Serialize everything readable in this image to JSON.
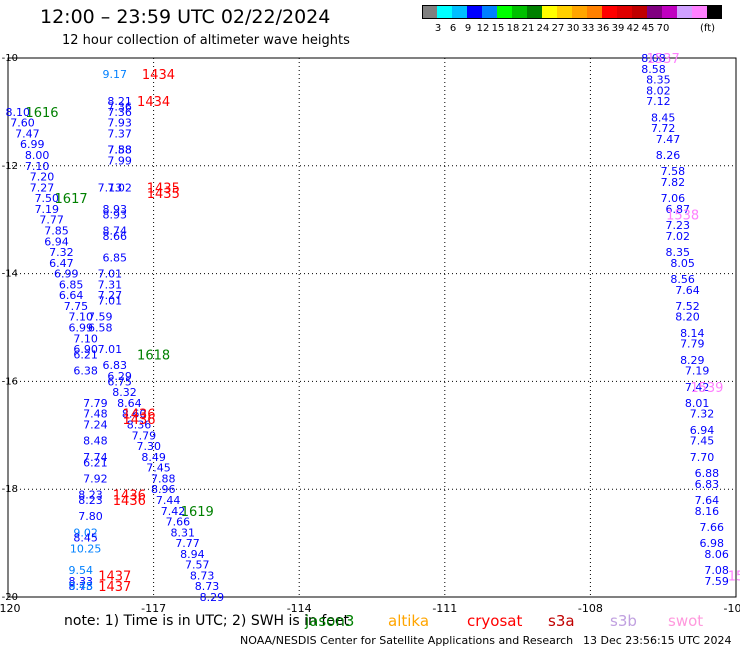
{
  "header": {
    "title": "12:00 – 23:59 UTC 02/22/2024",
    "subtitle": "12 hour collection of altimeter wave heights"
  },
  "colorbar": {
    "colors": [
      "#808080",
      "#00ffff",
      "#00bfff",
      "#0000ff",
      "#0080ff",
      "#00ff00",
      "#00c000",
      "#008000",
      "#ffff00",
      "#ffd000",
      "#ffa500",
      "#ff8000",
      "#ff0000",
      "#e00000",
      "#c00000",
      "#800080",
      "#c000c0",
      "#d0a0ff",
      "#ff80ff",
      "#000000"
    ],
    "labels": [
      "3",
      "6",
      "9",
      "12",
      "15",
      "18",
      "21",
      "24",
      "27",
      "30",
      "33",
      "36",
      "39",
      "42",
      "45",
      "70"
    ],
    "unit": "(ft)"
  },
  "footer": {
    "note": "note:  1) Time is in UTC;  2) SWH is in feet",
    "legend": [
      {
        "name": "jason3",
        "color": "#008000"
      },
      {
        "name": "altika",
        "color": "#ffa500"
      },
      {
        "name": "cryosat",
        "color": "#ff0000"
      },
      {
        "name": "s3a",
        "color": "#c00000"
      },
      {
        "name": "s3b",
        "color": "#c0a0e0"
      },
      {
        "name": "swot",
        "color": "#ff99dd"
      }
    ],
    "credit": "NOAA/NESDIS Center for Satellite Applications and Research",
    "timestamp": "13 Dec 23:56:15 UTC 2024"
  },
  "chart_data": {
    "type": "scatter",
    "title": "12:00 – 23:59 UTC 02/22/2024",
    "subtitle": "12 hour collection of altimeter wave heights",
    "x_ticks": [
      "-120",
      "-117",
      "-114",
      "-111",
      "-108",
      "-105"
    ],
    "y_ticks": [
      "-10",
      "-12",
      "-14",
      "-16",
      "-18",
      "-20"
    ],
    "xlim": [
      -120,
      -105
    ],
    "ylim": [
      -20,
      -10
    ],
    "grid": "dotted",
    "series": [
      {
        "name": "jason3",
        "color": "#008000",
        "pass_labels": [
          {
            "text": "1616",
            "x": -119.3,
            "y": -11.0
          },
          {
            "text": "1617",
            "x": -118.7,
            "y": -12.6
          },
          {
            "text": "1618",
            "x": -117.0,
            "y": -15.5
          },
          {
            "text": "1619",
            "x": -116.1,
            "y": -18.4
          }
        ]
      },
      {
        "name": "cryosat",
        "color": "#ff0000",
        "pass_labels": [
          {
            "text": "1434",
            "x": -116.9,
            "y": -10.3
          },
          {
            "text": "1434",
            "x": -117.0,
            "y": -10.8
          },
          {
            "text": "1435",
            "x": -116.8,
            "y": -12.4
          },
          {
            "text": "1435",
            "x": -116.8,
            "y": -12.5
          },
          {
            "text": "1436",
            "x": -117.3,
            "y": -16.6
          },
          {
            "text": "1436",
            "x": -117.3,
            "y": -16.7
          },
          {
            "text": "1436",
            "x": -117.5,
            "y": -18.1
          },
          {
            "text": "1436",
            "x": -117.5,
            "y": -18.2
          },
          {
            "text": "1437",
            "x": -117.8,
            "y": -19.6
          },
          {
            "text": "1437",
            "x": -117.8,
            "y": -19.8
          }
        ]
      },
      {
        "name": "swot",
        "color": "#ff80ff",
        "pass_labels": [
          {
            "text": "1537",
            "x": -106.5,
            "y": -10.0
          },
          {
            "text": "1538",
            "x": -106.1,
            "y": -12.9
          },
          {
            "text": "1539",
            "x": -105.6,
            "y": -16.1
          },
          {
            "text": "15",
            "x": -105.0,
            "y": -19.6
          }
        ]
      }
    ],
    "points": [
      {
        "x": -117.8,
        "y": -10.3,
        "v": 9.17
      },
      {
        "x": -117.7,
        "y": -10.8,
        "v": 8.21
      },
      {
        "x": -117.7,
        "y": -10.9,
        "v": 7.36
      },
      {
        "x": -117.7,
        "y": -11.0,
        "v": 7.36
      },
      {
        "x": -117.7,
        "y": -11.2,
        "v": 7.93
      },
      {
        "x": -117.7,
        "y": -11.4,
        "v": 7.37
      },
      {
        "x": -117.7,
        "y": -11.7,
        "v": 7.58
      },
      {
        "x": -117.7,
        "y": -11.7,
        "v": 7.88
      },
      {
        "x": -117.7,
        "y": -11.9,
        "v": 7.99
      },
      {
        "x": -119.8,
        "y": -11.0,
        "v": 8.1
      },
      {
        "x": -119.7,
        "y": -11.2,
        "v": 7.6
      },
      {
        "x": -119.6,
        "y": -11.4,
        "v": 7.47
      },
      {
        "x": -119.5,
        "y": -11.6,
        "v": 6.99
      },
      {
        "x": -119.4,
        "y": -11.8,
        "v": 8.0
      },
      {
        "x": -119.4,
        "y": -12.0,
        "v": 7.1
      },
      {
        "x": -119.3,
        "y": -12.2,
        "v": 7.2
      },
      {
        "x": -119.3,
        "y": -12.4,
        "v": 7.27
      },
      {
        "x": -119.2,
        "y": -12.6,
        "v": 7.5
      },
      {
        "x": -119.2,
        "y": -12.8,
        "v": 7.19
      },
      {
        "x": -119.1,
        "y": -13.0,
        "v": 7.77
      },
      {
        "x": -119.0,
        "y": -13.2,
        "v": 7.85
      },
      {
        "x": -119.0,
        "y": -13.4,
        "v": 6.94
      },
      {
        "x": -118.9,
        "y": -13.6,
        "v": 7.32
      },
      {
        "x": -118.9,
        "y": -13.8,
        "v": 6.47
      },
      {
        "x": -118.8,
        "y": -14.0,
        "v": 6.99
      },
      {
        "x": -118.7,
        "y": -14.2,
        "v": 6.85
      },
      {
        "x": -118.7,
        "y": -14.4,
        "v": 6.64
      },
      {
        "x": -118.6,
        "y": -14.6,
        "v": 7.75
      },
      {
        "x": -118.5,
        "y": -14.8,
        "v": 7.1
      },
      {
        "x": -118.5,
        "y": -15.0,
        "v": 6.99
      },
      {
        "x": -118.4,
        "y": -15.2,
        "v": 7.1
      },
      {
        "x": -118.4,
        "y": -15.4,
        "v": 6.9
      },
      {
        "x": -118.4,
        "y": -15.5,
        "v": 6.21
      },
      {
        "x": -118.4,
        "y": -15.8,
        "v": 6.38
      },
      {
        "x": -117.9,
        "y": -12.4,
        "v": 7.13
      },
      {
        "x": -117.7,
        "y": -12.4,
        "v": 7.02
      },
      {
        "x": -117.8,
        "y": -12.8,
        "v": 8.93
      },
      {
        "x": -117.8,
        "y": -12.9,
        "v": 8.93
      },
      {
        "x": -117.8,
        "y": -13.2,
        "v": 8.74
      },
      {
        "x": -117.8,
        "y": -13.3,
        "v": 8.66
      },
      {
        "x": -117.8,
        "y": -13.7,
        "v": 6.85
      },
      {
        "x": -117.9,
        "y": -14.0,
        "v": 7.01
      },
      {
        "x": -117.9,
        "y": -14.2,
        "v": 7.31
      },
      {
        "x": -117.9,
        "y": -14.4,
        "v": 7.27
      },
      {
        "x": -117.9,
        "y": -14.5,
        "v": 7.01
      },
      {
        "x": -118.1,
        "y": -14.8,
        "v": 7.59
      },
      {
        "x": -118.1,
        "y": -15.0,
        "v": 6.58
      },
      {
        "x": -117.9,
        "y": -15.4,
        "v": 7.01
      },
      {
        "x": -117.8,
        "y": -15.7,
        "v": 6.83
      },
      {
        "x": -117.7,
        "y": -15.9,
        "v": 6.29
      },
      {
        "x": -117.7,
        "y": -16.0,
        "v": 6.75
      },
      {
        "x": -117.6,
        "y": -16.2,
        "v": 8.32
      },
      {
        "x": -117.5,
        "y": -16.4,
        "v": 8.64
      },
      {
        "x": -117.4,
        "y": -16.6,
        "v": 8.6
      },
      {
        "x": -117.3,
        "y": -16.8,
        "v": 8.36
      },
      {
        "x": -117.2,
        "y": -17.0,
        "v": 7.79
      },
      {
        "x": -117.1,
        "y": -17.2,
        "v": 7.3
      },
      {
        "x": -117.0,
        "y": -17.4,
        "v": 8.49
      },
      {
        "x": -116.9,
        "y": -17.6,
        "v": 7.45
      },
      {
        "x": -116.8,
        "y": -17.8,
        "v": 7.88
      },
      {
        "x": -116.8,
        "y": -18.0,
        "v": 8.96
      },
      {
        "x": -116.7,
        "y": -18.2,
        "v": 7.44
      },
      {
        "x": -116.6,
        "y": -18.4,
        "v": 7.42
      },
      {
        "x": -116.5,
        "y": -18.6,
        "v": 7.66
      },
      {
        "x": -116.4,
        "y": -18.8,
        "v": 8.31
      },
      {
        "x": -116.3,
        "y": -19.0,
        "v": 7.77
      },
      {
        "x": -116.2,
        "y": -19.2,
        "v": 8.94
      },
      {
        "x": -116.1,
        "y": -19.4,
        "v": 7.57
      },
      {
        "x": -116.0,
        "y": -19.6,
        "v": 8.73
      },
      {
        "x": -115.9,
        "y": -19.8,
        "v": 8.73
      },
      {
        "x": -115.8,
        "y": -20.0,
        "v": 8.29
      },
      {
        "x": -118.2,
        "y": -16.4,
        "v": 7.79
      },
      {
        "x": -118.2,
        "y": -16.6,
        "v": 7.48
      },
      {
        "x": -118.2,
        "y": -16.8,
        "v": 7.24
      },
      {
        "x": -118.2,
        "y": -17.1,
        "v": 8.48
      },
      {
        "x": -118.2,
        "y": -17.4,
        "v": 7.74
      },
      {
        "x": -118.2,
        "y": -17.5,
        "v": 6.21
      },
      {
        "x": -118.2,
        "y": -17.8,
        "v": 7.92
      },
      {
        "x": -118.3,
        "y": -18.1,
        "v": 8.23
      },
      {
        "x": -118.3,
        "y": -18.2,
        "v": 8.23
      },
      {
        "x": -118.3,
        "y": -18.5,
        "v": 7.8
      },
      {
        "x": -118.4,
        "y": -18.8,
        "v": 9.02
      },
      {
        "x": -118.4,
        "y": -18.9,
        "v": 8.45
      },
      {
        "x": -118.4,
        "y": -19.1,
        "v": 10.25
      },
      {
        "x": -118.5,
        "y": -19.5,
        "v": 9.54
      },
      {
        "x": -118.5,
        "y": -19.7,
        "v": 8.33
      },
      {
        "x": -118.5,
        "y": -19.8,
        "v": 8.73
      },
      {
        "x": -118.5,
        "y": -19.8,
        "v": 9.48
      },
      {
        "x": -106.7,
        "y": -10.0,
        "v": 8.08
      },
      {
        "x": -106.7,
        "y": -10.2,
        "v": 8.58
      },
      {
        "x": -106.6,
        "y": -10.4,
        "v": 8.35
      },
      {
        "x": -106.6,
        "y": -10.6,
        "v": 8.02
      },
      {
        "x": -106.6,
        "y": -10.8,
        "v": 7.12
      },
      {
        "x": -106.5,
        "y": -11.1,
        "v": 8.45
      },
      {
        "x": -106.5,
        "y": -11.3,
        "v": 7.72
      },
      {
        "x": -106.4,
        "y": -11.5,
        "v": 7.47
      },
      {
        "x": -106.4,
        "y": -11.8,
        "v": 8.26
      },
      {
        "x": -106.3,
        "y": -12.1,
        "v": 7.58
      },
      {
        "x": -106.3,
        "y": -12.3,
        "v": 7.82
      },
      {
        "x": -106.3,
        "y": -12.6,
        "v": 7.06
      },
      {
        "x": -106.2,
        "y": -12.8,
        "v": 6.87
      },
      {
        "x": -106.2,
        "y": -13.1,
        "v": 7.23
      },
      {
        "x": -106.2,
        "y": -13.3,
        "v": 7.02
      },
      {
        "x": -106.2,
        "y": -13.6,
        "v": 8.35
      },
      {
        "x": -106.1,
        "y": -13.8,
        "v": 8.05
      },
      {
        "x": -106.1,
        "y": -14.1,
        "v": 8.56
      },
      {
        "x": -106.0,
        "y": -14.3,
        "v": 7.64
      },
      {
        "x": -106.0,
        "y": -14.6,
        "v": 7.52
      },
      {
        "x": -106.0,
        "y": -14.8,
        "v": 8.2
      },
      {
        "x": -105.9,
        "y": -15.1,
        "v": 8.14
      },
      {
        "x": -105.9,
        "y": -15.3,
        "v": 7.79
      },
      {
        "x": -105.9,
        "y": -15.6,
        "v": 8.29
      },
      {
        "x": -105.8,
        "y": -15.8,
        "v": 7.19
      },
      {
        "x": -105.8,
        "y": -16.1,
        "v": 7.42
      },
      {
        "x": -105.8,
        "y": -16.4,
        "v": 8.01
      },
      {
        "x": -105.7,
        "y": -16.6,
        "v": 7.32
      },
      {
        "x": -105.7,
        "y": -16.9,
        "v": 6.94
      },
      {
        "x": -105.7,
        "y": -17.1,
        "v": 7.45
      },
      {
        "x": -105.7,
        "y": -17.4,
        "v": 7.7
      },
      {
        "x": -105.6,
        "y": -17.7,
        "v": 6.88
      },
      {
        "x": -105.6,
        "y": -17.9,
        "v": 6.83
      },
      {
        "x": -105.6,
        "y": -18.2,
        "v": 7.64
      },
      {
        "x": -105.6,
        "y": -18.4,
        "v": 8.16
      },
      {
        "x": -105.5,
        "y": -18.7,
        "v": 7.66
      },
      {
        "x": -105.5,
        "y": -19.0,
        "v": 6.98
      },
      {
        "x": -105.4,
        "y": -19.2,
        "v": 8.06
      },
      {
        "x": -105.4,
        "y": -19.5,
        "v": 7.08
      },
      {
        "x": -105.4,
        "y": -19.7,
        "v": 7.59
      }
    ]
  }
}
